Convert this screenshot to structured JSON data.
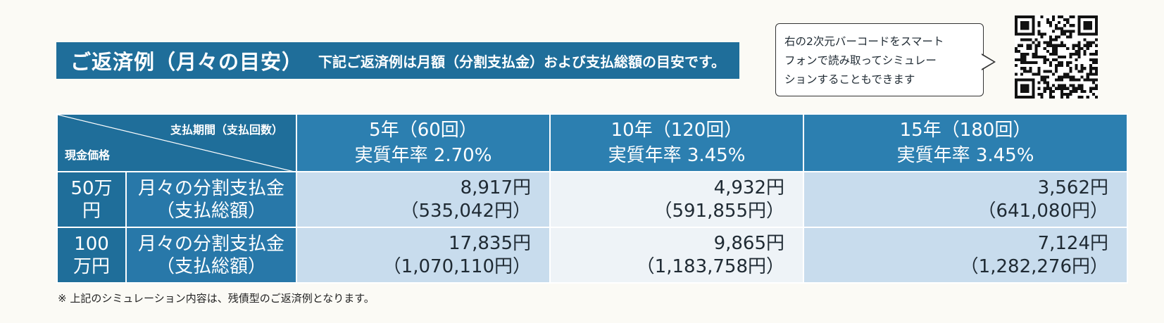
{
  "header": {
    "title": "ご返済例（月々の目安）",
    "description": "下記ご返済例は月額（分割支払金）および支払総額の目安です。"
  },
  "qr_note": {
    "lines": [
      "右の2次元バーコードをスマート",
      "フォンで読み取ってシミュレー",
      "ションすることもできます"
    ]
  },
  "table": {
    "corner_top": "支払期間（支払回数）",
    "corner_bottom": "現金価格",
    "periods": [
      {
        "term": "5年（60回）",
        "rate": "実質年率 2.70%"
      },
      {
        "term": "10年（120回）",
        "rate": "実質年率 3.45%"
      },
      {
        "term": "15年（180回）",
        "rate": "実質年率 3.45%"
      }
    ],
    "rows": [
      {
        "price_line1": "50万",
        "price_line2": "円",
        "label_line1": "月々の分割支払金",
        "label_line2": "（支払総額）",
        "values": [
          {
            "monthly": "8,917円",
            "total": "（535,042円）"
          },
          {
            "monthly": "4,932円",
            "total": "（591,855円）"
          },
          {
            "monthly": "3,562円",
            "total": "（641,080円）"
          }
        ]
      },
      {
        "price_line1": "100",
        "price_line2": "万円",
        "label_line1": "月々の分割支払金",
        "label_line2": "（支払総額）",
        "values": [
          {
            "monthly": "17,835円",
            "total": "（1,070,110円）"
          },
          {
            "monthly": "9,865円",
            "total": "（1,183,758円）"
          },
          {
            "monthly": "7,124円",
            "total": "（1,282,276円）"
          }
        ]
      }
    ]
  },
  "footnote": "※ 上記のシミュレーション内容は、残債型のご返済例となります。",
  "colors": {
    "primary": "#1f6e9a",
    "header_cell": "#2c7fb0",
    "light_cell": "#c8dced",
    "white_cell": "#eef3f7"
  },
  "icons": {
    "qr": "qr-code-icon"
  }
}
